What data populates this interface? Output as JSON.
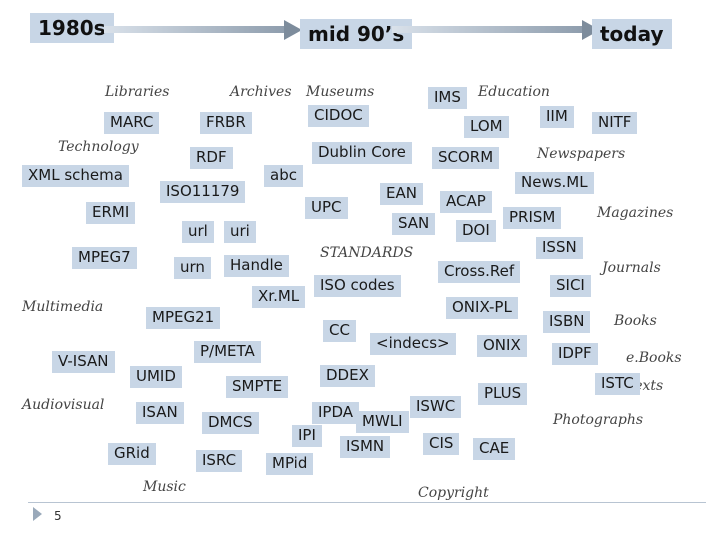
{
  "timeline": {
    "start": "1980s",
    "middle": "mid 90’s",
    "end": "today"
  },
  "categories": {
    "libraries": "Libraries",
    "archives": "Archives",
    "museums": "Museums",
    "education": "Education",
    "technology": "Technology",
    "newspapers": "Newspapers",
    "magazines": "Magazines",
    "standards": "STANDARDS",
    "journals": "Journals",
    "multimedia": "Multimedia",
    "books": "Books",
    "ebooks": "e.Books",
    "texts": "Texts",
    "audiovisual": "Audiovisual",
    "photographs": "Photographs",
    "music": "Music",
    "copyright": "Copyright"
  },
  "standards": {
    "marc": "MARC",
    "frbr": "FRBR",
    "cidoc": "CIDOC",
    "ims": "IMS",
    "iim": "IIM",
    "nitf": "NITF",
    "lom": "LOM",
    "rdf": "RDF",
    "dublin_core": "Dublin Core",
    "scorm": "SCORM",
    "xml_schema": "XML schema",
    "abc": "abc",
    "newsml": "News.ML",
    "iso11179": "ISO11179",
    "ean": "EAN",
    "acap": "ACAP",
    "ermi": "ERMI",
    "upc": "UPC",
    "prism": "PRISM",
    "san": "SAN",
    "doi": "DOI",
    "url": "url",
    "uri": "uri",
    "issn": "ISSN",
    "mpeg7": "MPEG7",
    "urn": "urn",
    "handle": "Handle",
    "crossref": "Cross.Ref",
    "sici": "SICI",
    "xrml": "Xr.ML",
    "iso_codes": "ISO codes",
    "onix_pl": "ONIX-PL",
    "mpeg21": "MPEG21",
    "isbn": "ISBN",
    "cc": "CC",
    "indecs": "<indecs>",
    "onix": "ONIX",
    "pmeta": "P/META",
    "idpf": "IDPF",
    "visan": "V-ISAN",
    "umid": "UMID",
    "ddex": "DDEX",
    "istc": "ISTC",
    "smpte": "SMPTE",
    "plus": "PLUS",
    "isan": "ISAN",
    "ipda": "IPDA",
    "iswc": "ISWC",
    "mwli": "MWLI",
    "dmcs": "DMCS",
    "ipi": "IPI",
    "cis": "CIS",
    "ismn": "ISMN",
    "cae": "CAE",
    "grid": "GRid",
    "isrc": "ISRC",
    "mpid": "MPid"
  },
  "slide_number": "5"
}
